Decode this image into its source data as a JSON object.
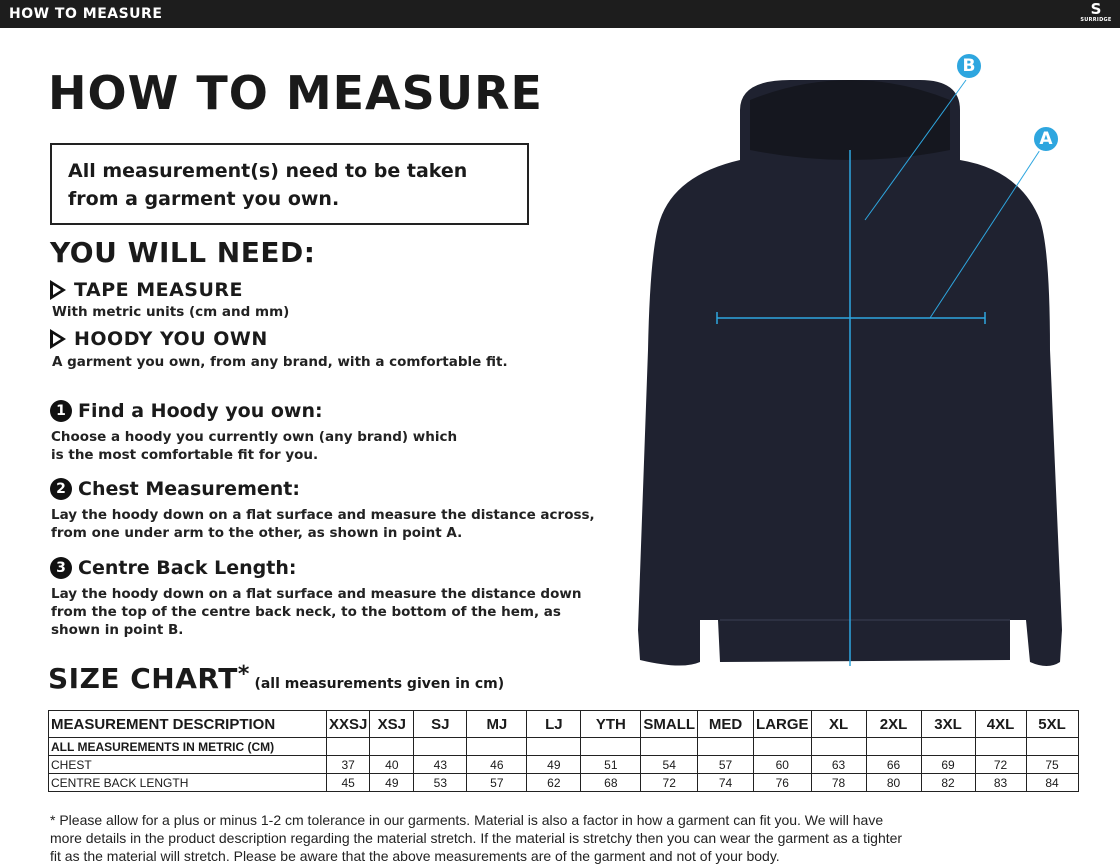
{
  "topbar": {
    "title": "HOW TO MEASURE",
    "logo_text": "SURRIDGE"
  },
  "title": "HOW TO MEASURE",
  "notice": "All measurement(s) need to be taken from a garment you own.",
  "need": {
    "heading": "YOU WILL NEED:",
    "items": [
      {
        "label": "TAPE MEASURE",
        "desc": "With metric units (cm and mm)"
      },
      {
        "label": "HOODY YOU OWN",
        "desc": "A garment you own, from any brand, with a comfortable fit."
      }
    ]
  },
  "steps": [
    {
      "num": "1",
      "title": "Find a Hoody you own:",
      "lines": [
        "Choose a hoody you currently own (any brand) which",
        "is the most comfortable fit for you."
      ]
    },
    {
      "num": "2",
      "title": "Chest Measurement:",
      "lines": [
        "Lay the hoody down on a flat surface and measure the distance across,",
        "from one under arm to the other, as shown in point A."
      ]
    },
    {
      "num": "3",
      "title": "Centre Back Length:",
      "lines": [
        "Lay the hoody down on a flat surface and measure the distance down",
        "from the top of the centre back neck, to the bottom of the hem, as",
        "shown in point B."
      ]
    }
  ],
  "size_chart": {
    "heading": "SIZE CHART",
    "asterisk": "*",
    "note": "(all measurements given in cm)",
    "columns": [
      "MEASUREMENT DESCRIPTION",
      "XXSJ",
      "XSJ",
      "SJ",
      "MJ",
      "LJ",
      "YTH",
      "SMALL",
      "MED",
      "LARGE",
      "XL",
      "2XL",
      "3XL",
      "4XL",
      "5XL"
    ],
    "rows": [
      {
        "label": "ALL MEASUREMENTS IN METRIC (CM)",
        "values": [
          "",
          "",
          "",
          "",
          "",
          "",
          "",
          "",
          "",
          "",
          "",
          "",
          "",
          ""
        ]
      },
      {
        "label": "CHEST",
        "values": [
          "37",
          "40",
          "43",
          "46",
          "49",
          "51",
          "54",
          "57",
          "60",
          "63",
          "66",
          "69",
          "72",
          "75"
        ]
      },
      {
        "label": "CENTRE BACK LENGTH",
        "values": [
          "45",
          "49",
          "53",
          "57",
          "62",
          "68",
          "72",
          "74",
          "76",
          "78",
          "80",
          "82",
          "83",
          "84"
        ]
      }
    ]
  },
  "footnote": "* Please allow for a plus or minus 1-2 cm tolerance in our garments. Material is also a factor in how a garment can fit you. We will have more details in the product description regarding the material stretch.  If the material is stretchy then you can wear the garment as a tighter fit as the material will stretch.  Please be aware that the above measurements are of the garment and not of your body.",
  "diagram": {
    "point_a": "A",
    "point_b": "B",
    "line_color": "#2ea6df",
    "garment_color": "#1f2230"
  }
}
